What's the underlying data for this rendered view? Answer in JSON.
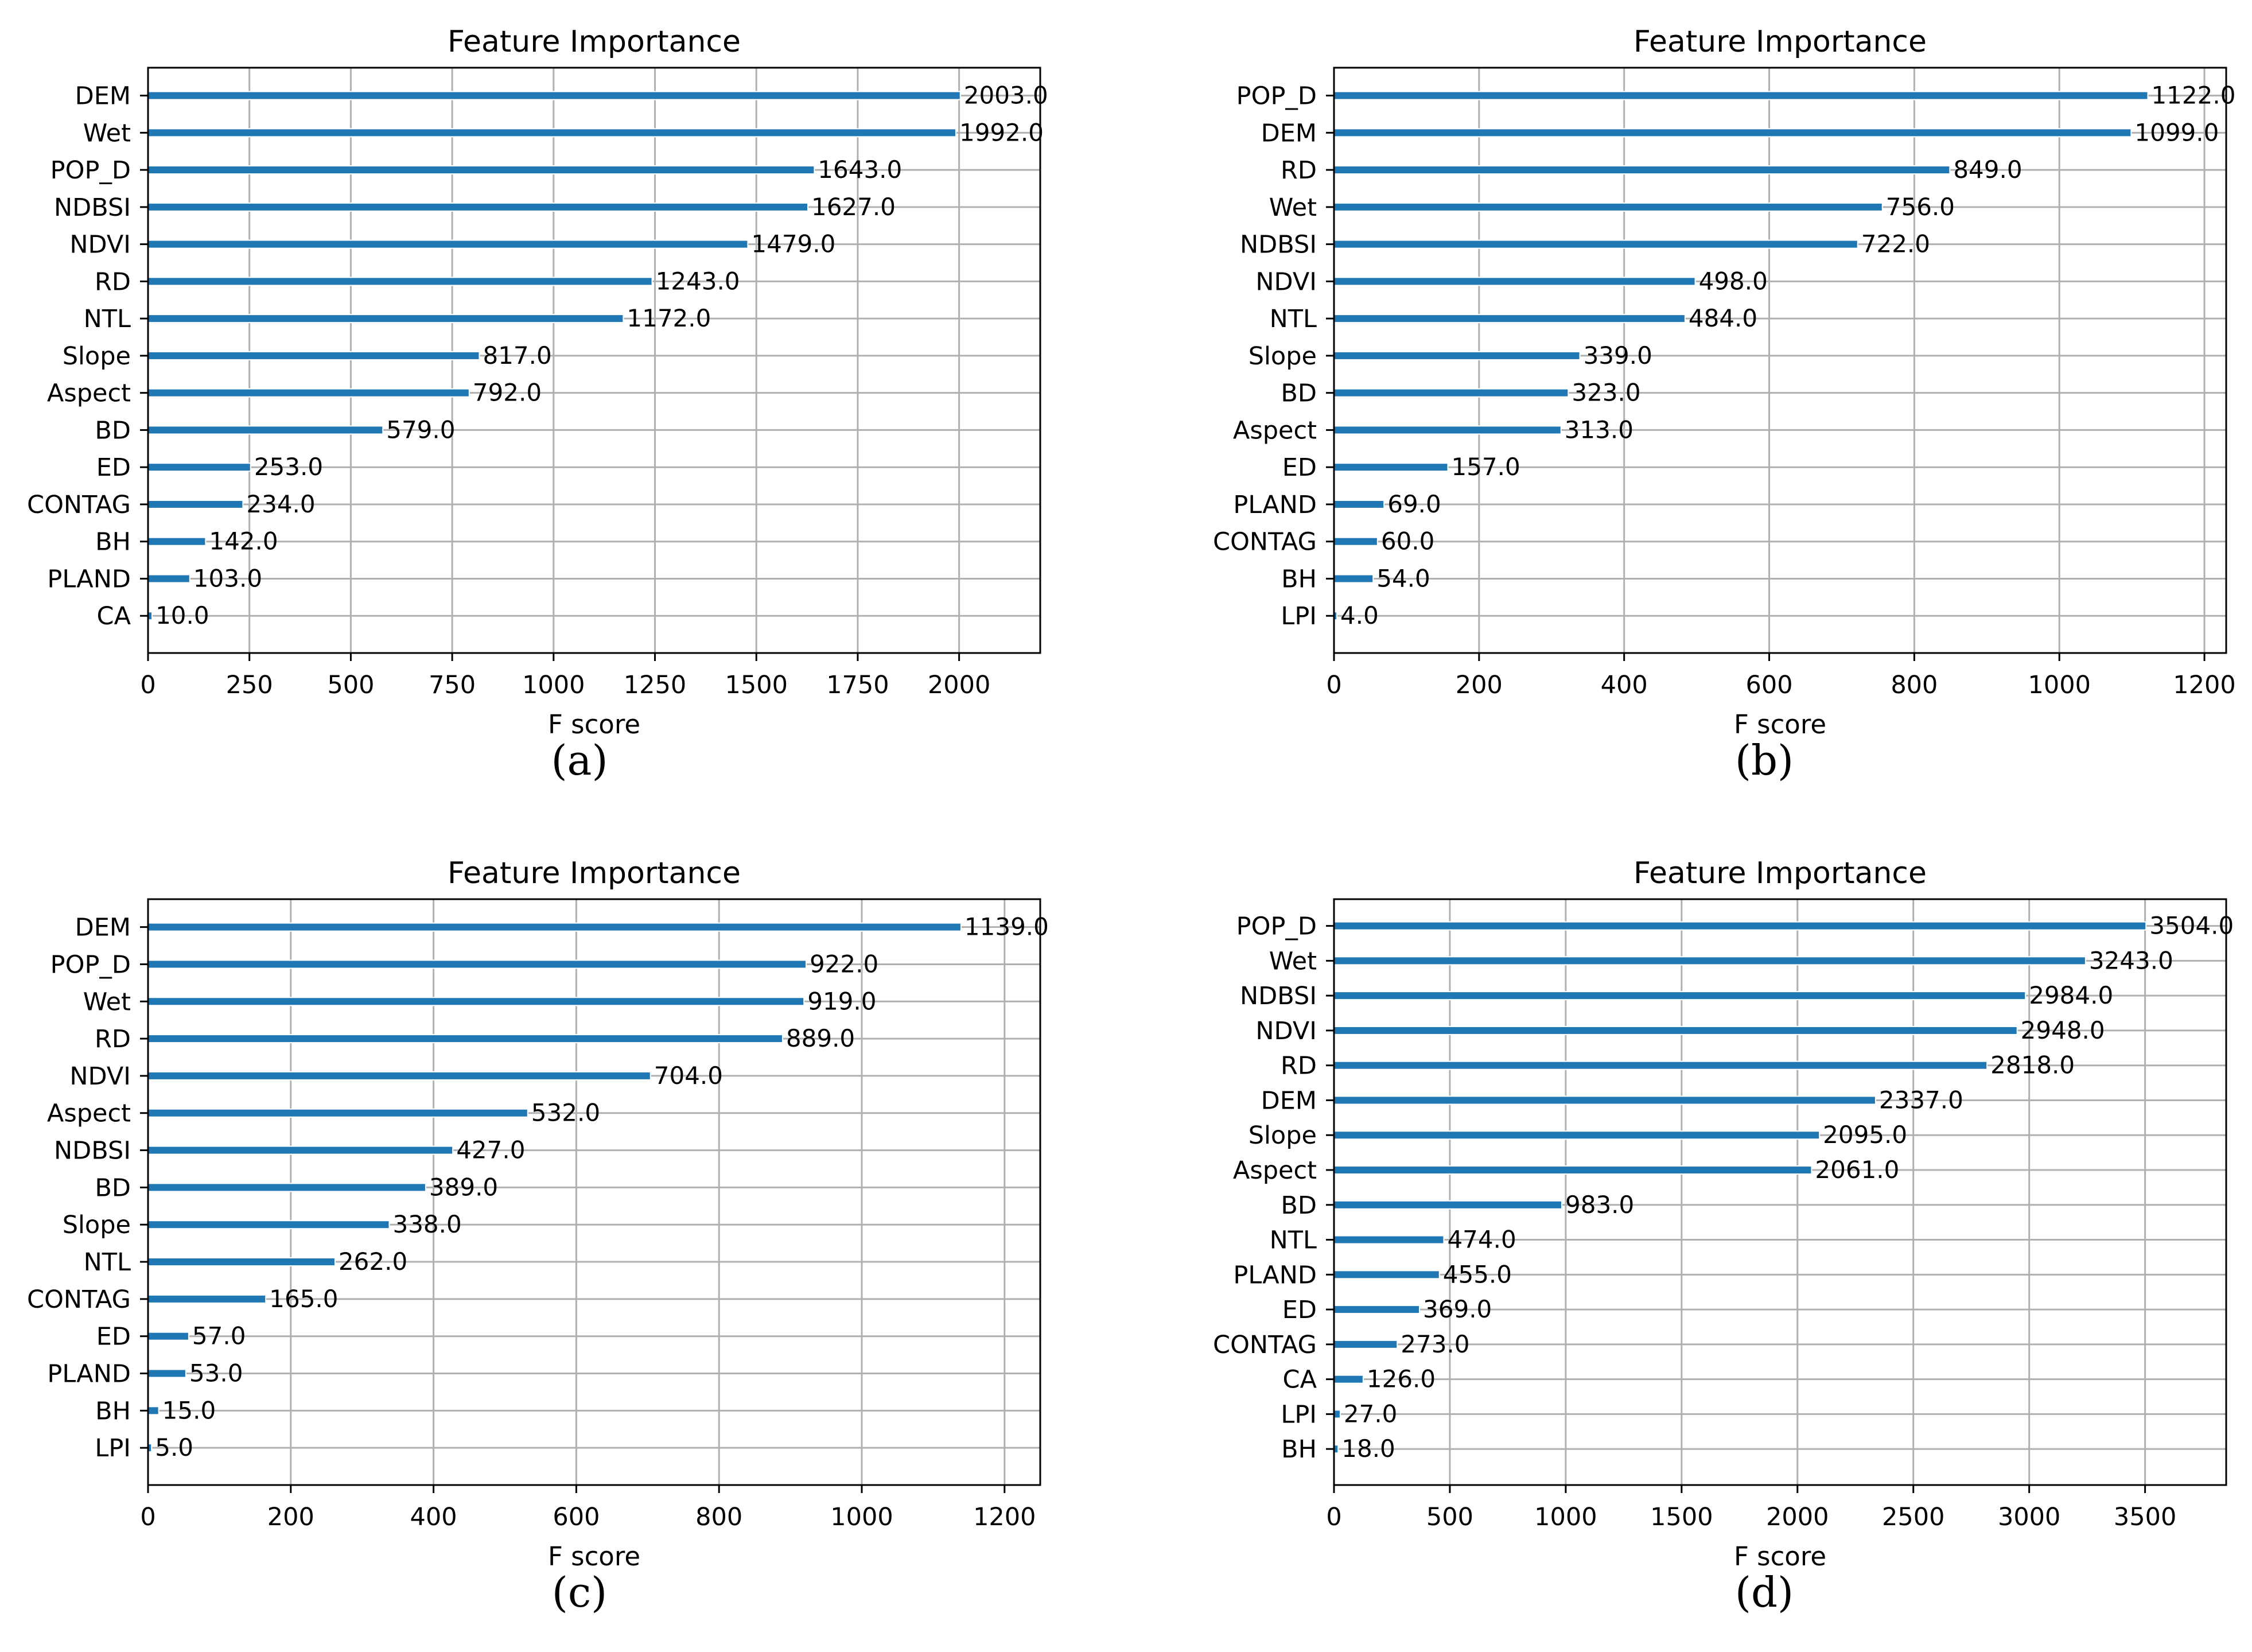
{
  "chart_data": [
    {
      "type": "bar",
      "orientation": "horizontal",
      "title": "Feature Importance",
      "xlabel": "F score",
      "ylabel": "",
      "caption": "(a)",
      "xlim": [
        0,
        2200
      ],
      "xticks": [
        0,
        250,
        500,
        750,
        1000,
        1250,
        1500,
        1750,
        2000
      ],
      "categories": [
        "DEM",
        "Wet",
        "POP_D",
        "NDBSI",
        "NDVI",
        "RD",
        "NTL",
        "Slope",
        "Aspect",
        "BD",
        "ED",
        "CONTAG",
        "BH",
        "PLAND",
        "CA"
      ],
      "values": [
        2003,
        1992,
        1643,
        1627,
        1479,
        1243,
        1172,
        817,
        792,
        579,
        253,
        234,
        142,
        103,
        10
      ],
      "value_labels": [
        "2003.0",
        "1992.0",
        "1643.0",
        "1627.0",
        "1479.0",
        "1243.0",
        "1172.0",
        "817.0",
        "792.0",
        "579.0",
        "253.0",
        "234.0",
        "142.0",
        "103.0",
        "10.0"
      ],
      "grid": true
    },
    {
      "type": "bar",
      "orientation": "horizontal",
      "title": "Feature Importance",
      "xlabel": "F score",
      "ylabel": "",
      "caption": "(b)",
      "xlim": [
        0,
        1230
      ],
      "xticks": [
        0,
        200,
        400,
        600,
        800,
        1000,
        1200
      ],
      "categories": [
        "POP_D",
        "DEM",
        "RD",
        "Wet",
        "NDBSI",
        "NDVI",
        "NTL",
        "Slope",
        "BD",
        "Aspect",
        "ED",
        "PLAND",
        "CONTAG",
        "BH",
        "LPI"
      ],
      "values": [
        1122,
        1099,
        849,
        756,
        722,
        498,
        484,
        339,
        323,
        313,
        157,
        69,
        60,
        54,
        4
      ],
      "value_labels": [
        "1122.0",
        "1099.0",
        "849.0",
        "756.0",
        "722.0",
        "498.0",
        "484.0",
        "339.0",
        "323.0",
        "313.0",
        "157.0",
        "69.0",
        "60.0",
        "54.0",
        "4.0"
      ],
      "grid": true
    },
    {
      "type": "bar",
      "orientation": "horizontal",
      "title": "Feature Importance",
      "xlabel": "F score",
      "ylabel": "",
      "caption": "(c)",
      "xlim": [
        0,
        1250
      ],
      "xticks": [
        0,
        200,
        400,
        600,
        800,
        1000,
        1200
      ],
      "categories": [
        "DEM",
        "POP_D",
        "Wet",
        "RD",
        "NDVI",
        "Aspect",
        "NDBSI",
        "BD",
        "Slope",
        "NTL",
        "CONTAG",
        "ED",
        "PLAND",
        "BH",
        "LPI"
      ],
      "values": [
        1139,
        922,
        919,
        889,
        704,
        532,
        427,
        389,
        338,
        262,
        165,
        57,
        53,
        15,
        5
      ],
      "value_labels": [
        "1139.0",
        "922.0",
        "919.0",
        "889.0",
        "704.0",
        "532.0",
        "427.0",
        "389.0",
        "338.0",
        "262.0",
        "165.0",
        "57.0",
        "53.0",
        "15.0",
        "5.0"
      ],
      "grid": true
    },
    {
      "type": "bar",
      "orientation": "horizontal",
      "title": "Feature Importance",
      "xlabel": "F score",
      "ylabel": "",
      "caption": "(d)",
      "xlim": [
        0,
        3850
      ],
      "xticks": [
        0,
        500,
        1000,
        1500,
        2000,
        2500,
        3000,
        3500
      ],
      "categories": [
        "POP_D",
        "Wet",
        "NDBSI",
        "NDVI",
        "RD",
        "DEM",
        "Slope",
        "Aspect",
        "BD",
        "NTL",
        "PLAND",
        "ED",
        "CONTAG",
        "CA",
        "LPI",
        "BH"
      ],
      "values": [
        3504,
        3243,
        2984,
        2948,
        2818,
        2337,
        2095,
        2061,
        983,
        474,
        455,
        369,
        273,
        126,
        27,
        18
      ],
      "value_labels": [
        "3504.0",
        "3243.0",
        "2984.0",
        "2948.0",
        "2818.0",
        "2337.0",
        "2095.0",
        "2061.0",
        "983.0",
        "474.0",
        "455.0",
        "369.0",
        "273.0",
        "126.0",
        "27.0",
        "18.0"
      ],
      "grid": true
    }
  ],
  "colors": {
    "bar": "#1f77b4",
    "grid": "#b0b0b0",
    "axis": "#000000",
    "text": "#000000"
  }
}
